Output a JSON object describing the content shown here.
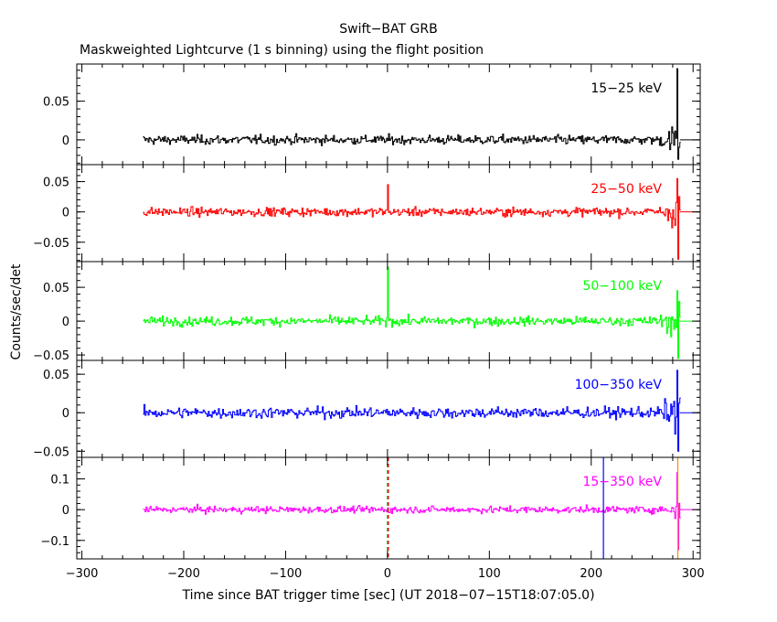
{
  "chart_data": {
    "type": "line",
    "title": "Swift−BAT GRB",
    "subtitle": "Maskweighted Lightcurve (1 s binning) using the flight position",
    "xlabel": "Time since BAT trigger time [sec] (UT 2018−07−15T18:07:05.0)",
    "ylabel": "Counts/sec/det",
    "xlim": [
      -305,
      307
    ],
    "xticks": [
      -300,
      -200,
      -100,
      0,
      100,
      200,
      300
    ],
    "xticklabels": [
      "−300",
      "−200",
      "−100",
      "0",
      "100",
      "200",
      "300"
    ],
    "data_x_range": [
      -240,
      287
    ],
    "binning_sec": 1,
    "panels": [
      {
        "name": "15−25 keV",
        "color": "#000000",
        "ylim": [
          -0.032,
          0.098
        ],
        "yticks": [
          0,
          0.05
        ],
        "yticklabels": [
          "0",
          "0.05"
        ],
        "noise_sigma": 0.0075,
        "spike_at_zero": 0.0,
        "end_peak_max": 0.092,
        "end_peak_min": -0.025
      },
      {
        "name": "25−50 keV",
        "color": "#ff0000",
        "ylim": [
          -0.082,
          0.078
        ],
        "yticks": [
          -0.05,
          0,
          0.05
        ],
        "yticklabels": [
          "−0.05",
          "0",
          "0.05"
        ],
        "noise_sigma": 0.009,
        "spike_at_zero": 0.045,
        "end_peak_max": 0.055,
        "end_peak_min": -0.078
      },
      {
        "name": "50−100 keV",
        "color": "#00ff00",
        "ylim": [
          -0.058,
          0.088
        ],
        "yticks": [
          -0.05,
          0,
          0.05
        ],
        "yticklabels": [
          "−0.05",
          "0",
          "0.05"
        ],
        "noise_sigma": 0.0085,
        "spike_at_zero": 0.08,
        "end_peak_max": 0.045,
        "end_peak_min": -0.055
      },
      {
        "name": "100−350 keV",
        "color": "#0000ff",
        "ylim": [
          -0.058,
          0.068
        ],
        "yticks": [
          -0.05,
          0,
          0.05
        ],
        "yticklabels": [
          "−0.05",
          "0",
          "0.05"
        ],
        "noise_sigma": 0.009,
        "spike_at_zero": 0.0,
        "end_peak_max": 0.055,
        "end_peak_min": -0.05
      },
      {
        "name": "15−350 keV",
        "color": "#ff00ff",
        "ylim": [
          -0.16,
          0.17
        ],
        "yticks": [
          -0.1,
          0,
          0.1
        ],
        "yticklabels": [
          "−0.1",
          "0",
          "0.1"
        ],
        "noise_sigma": 0.014,
        "spike_at_zero": 0.0,
        "end_peak_max": 0.12,
        "end_peak_min": -0.13,
        "markers": [
          {
            "x": 0,
            "color": "#00aa00",
            "style": "dashed"
          },
          {
            "x": 0,
            "color": "#ff0000",
            "style": "dashed"
          },
          {
            "x": 212,
            "color": "#0000ff",
            "style": "solid"
          },
          {
            "x": 285,
            "color": "#ff8800",
            "style": "solid"
          }
        ]
      }
    ]
  }
}
